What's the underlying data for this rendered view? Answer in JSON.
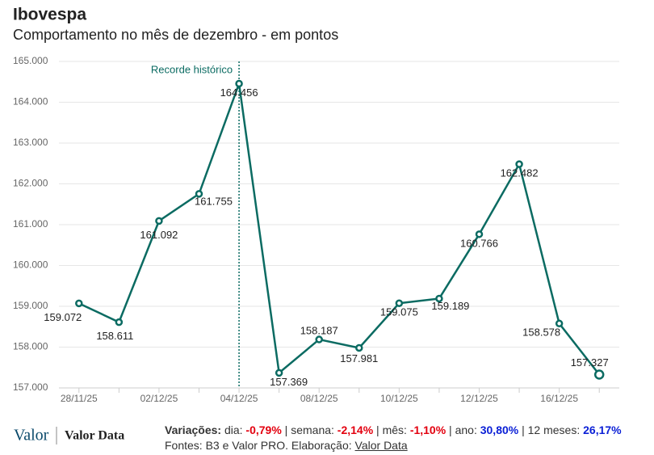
{
  "chart_data": {
    "type": "line",
    "title": "Ibovespa",
    "subtitle": "Comportamento no mês de dezembro - em pontos",
    "categories": [
      "28/11/25",
      null,
      "02/12/25",
      null,
      "04/12/25",
      null,
      "08/12/25",
      null,
      "10/12/25",
      null,
      "12/12/25",
      null,
      "16/12/25",
      null
    ],
    "series": [
      {
        "name": "Ibovespa",
        "color": "#0b6b62",
        "values": [
          159072,
          158611,
          161092,
          161755,
          164456,
          157369,
          158187,
          157981,
          159075,
          159189,
          160766,
          162482,
          158578,
          157327
        ],
        "value_labels": [
          "159.072",
          "158.611",
          "161.092",
          "161.755",
          "164.456",
          "157.369",
          "158.187",
          "157.981",
          "159.075",
          "159.189",
          "160.766",
          "162.482",
          "158.578",
          "157.327"
        ]
      }
    ],
    "ylim": [
      157000,
      165000
    ],
    "yticks": [
      {
        "value": 157000,
        "label": "157.000"
      },
      {
        "value": 158000,
        "label": "158.000"
      },
      {
        "value": 159000,
        "label": "159.000"
      },
      {
        "value": 160000,
        "label": "160.000"
      },
      {
        "value": 161000,
        "label": "161.000"
      },
      {
        "value": 162000,
        "label": "162.000"
      },
      {
        "value": 163000,
        "label": "163.000"
      },
      {
        "value": 164000,
        "label": "164.000"
      },
      {
        "value": 165000,
        "label": "165.000"
      }
    ],
    "grid": true,
    "annotation": {
      "text": "Recorde histórico",
      "index": 4
    }
  },
  "footer": {
    "logo": "Valor",
    "logo2": "Valor Data",
    "variations_label": "Variações:",
    "variations": [
      {
        "label": "dia:",
        "value": "-0,79%",
        "color": "#e3000f"
      },
      {
        "label": "semana:",
        "value": "-2,14%",
        "color": "#e3000f"
      },
      {
        "label": "mês:",
        "value": "-1,10%",
        "color": "#e3000f"
      },
      {
        "label": "ano:",
        "value": "30,80%",
        "color": "#0a1fd6"
      },
      {
        "label": "12 meses:",
        "value": "26,17%",
        "color": "#0a1fd6"
      }
    ],
    "sources": "Fontes: B3 e Valor PRO. Elaboração:",
    "sources_link": "Valor Data"
  }
}
